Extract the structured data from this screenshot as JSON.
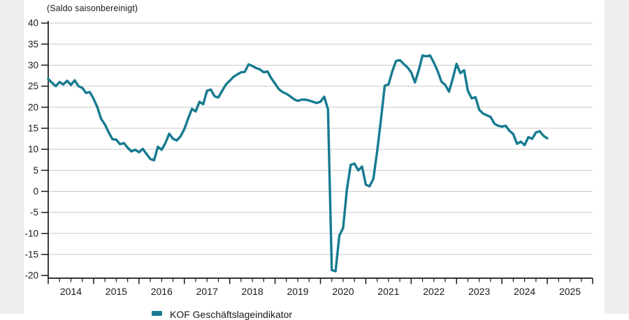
{
  "page": {
    "background": "#ffffff",
    "side_strip_color": "#efeeec",
    "axis_color": "#1a1a1a",
    "grid_color": "#c9c9c9"
  },
  "chart_data": {
    "type": "line",
    "title": "(Saldo saisonbereinigt)",
    "grid": true,
    "legend_position": "bottom-left",
    "x_tick_labels": [
      "2014",
      "2015",
      "2016",
      "2017",
      "2018",
      "2019",
      "2020",
      "2021",
      "2022",
      "2023",
      "2024",
      "2025"
    ],
    "y_ticks": [
      40,
      35,
      30,
      25,
      20,
      15,
      10,
      5,
      0,
      -5,
      -10,
      -15,
      -20
    ],
    "ylim": [
      -20,
      40
    ],
    "xlim_years": [
      2014,
      2026
    ],
    "series": [
      {
        "name": "KOF Geschäftslageindikator",
        "color": "#177a90",
        "start": "2014-01",
        "frequency": "monthly",
        "values": [
          26.7,
          25.8,
          25.0,
          26.0,
          25.4,
          26.3,
          25.3,
          26.4,
          25.0,
          24.6,
          23.4,
          23.6,
          22.0,
          20.0,
          17.2,
          15.9,
          14.0,
          12.4,
          12.3,
          11.2,
          11.5,
          10.4,
          9.5,
          9.9,
          9.3,
          10.1,
          8.9,
          7.7,
          7.4,
          10.6,
          9.9,
          11.5,
          13.7,
          12.5,
          12.1,
          13.1,
          14.8,
          17.3,
          19.6,
          19.0,
          21.3,
          20.7,
          23.9,
          24.2,
          22.6,
          22.3,
          23.9,
          25.4,
          26.3,
          27.2,
          27.8,
          28.3,
          28.4,
          30.2,
          29.8,
          29.3,
          29.0,
          28.3,
          28.5,
          26.9,
          25.6,
          24.3,
          23.6,
          23.2,
          22.6,
          21.9,
          21.5,
          21.8,
          21.8,
          21.6,
          21.3,
          21.0,
          21.3,
          22.5,
          19.5,
          -18.7,
          -19.0,
          -10.5,
          -8.7,
          0.5,
          6.3,
          6.6,
          5.0,
          5.9,
          1.6,
          1.2,
          3.0,
          9.5,
          17.0,
          25.1,
          25.4,
          28.5,
          31.0,
          31.2,
          30.3,
          29.5,
          28.3,
          25.9,
          28.8,
          32.3,
          32.1,
          32.3,
          30.6,
          28.6,
          26.1,
          25.3,
          23.7,
          26.8,
          30.3,
          28.1,
          28.8,
          23.9,
          22.1,
          22.4,
          19.4,
          18.5,
          18.1,
          17.7,
          16.1,
          15.6,
          15.4,
          15.6,
          14.4,
          13.6,
          11.3,
          11.8,
          11.0,
          12.9,
          12.5,
          14.0,
          14.3,
          13.2,
          12.6
        ]
      }
    ]
  },
  "legend": {
    "label": "KOF Geschäftslageindikator",
    "swatch_color": "#177a90"
  }
}
